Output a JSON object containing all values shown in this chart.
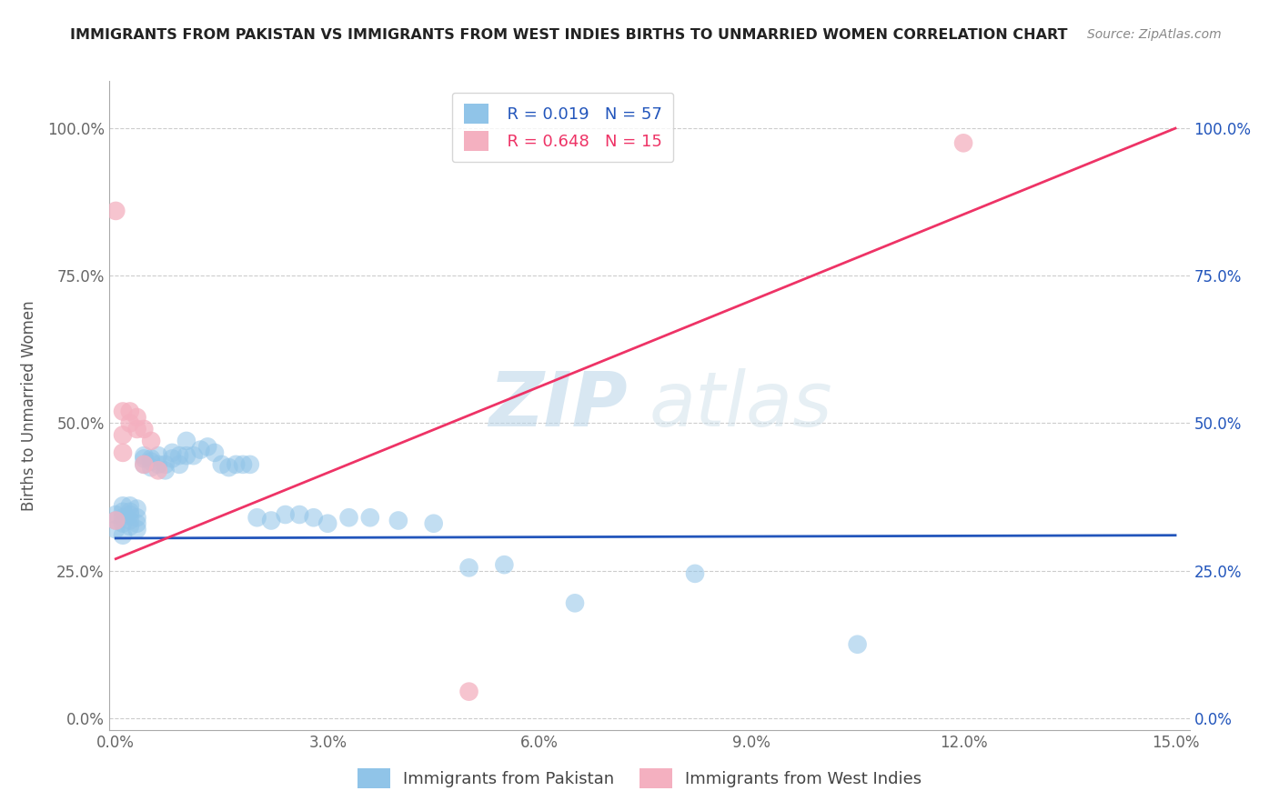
{
  "title": "IMMIGRANTS FROM PAKISTAN VS IMMIGRANTS FROM WEST INDIES BIRTHS TO UNMARRIED WOMEN CORRELATION CHART",
  "source": "Source: ZipAtlas.com",
  "ylabel": "Births to Unmarried Women",
  "watermark_zip": "ZIP",
  "watermark_atlas": "atlas",
  "legend_r1": "R = 0.019",
  "legend_n1": "N = 57",
  "legend_r2": "R = 0.648",
  "legend_n2": "N = 15",
  "xlim": [
    -0.001,
    0.152
  ],
  "ylim": [
    -0.02,
    1.08
  ],
  "xticks": [
    0.0,
    0.03,
    0.06,
    0.09,
    0.12,
    0.15
  ],
  "xticklabels": [
    "0.0%",
    "3.0%",
    "6.0%",
    "9.0%",
    "12.0%",
    "15.0%"
  ],
  "yticks": [
    0.0,
    0.25,
    0.5,
    0.75,
    1.0
  ],
  "yticklabels": [
    "0.0%",
    "25.0%",
    "50.0%",
    "75.0%",
    "100.0%"
  ],
  "grid_color": "#cccccc",
  "blue_color": "#90c4e8",
  "pink_color": "#f4b0c0",
  "line_blue": "#2255bb",
  "line_pink": "#ee3366",
  "pakistan_x": [
    0.0,
    0.0,
    0.0,
    0.001,
    0.001,
    0.001,
    0.001,
    0.001,
    0.002,
    0.002,
    0.002,
    0.002,
    0.002,
    0.003,
    0.003,
    0.003,
    0.003,
    0.004,
    0.004,
    0.004,
    0.005,
    0.005,
    0.005,
    0.006,
    0.006,
    0.007,
    0.007,
    0.008,
    0.008,
    0.009,
    0.009,
    0.01,
    0.01,
    0.011,
    0.012,
    0.013,
    0.014,
    0.015,
    0.016,
    0.017,
    0.018,
    0.019,
    0.02,
    0.022,
    0.024,
    0.026,
    0.028,
    0.03,
    0.033,
    0.036,
    0.04,
    0.045,
    0.05,
    0.055,
    0.065,
    0.082,
    0.105
  ],
  "pakistan_y": [
    0.335,
    0.32,
    0.345,
    0.33,
    0.34,
    0.35,
    0.36,
    0.31,
    0.325,
    0.335,
    0.345,
    0.35,
    0.36,
    0.33,
    0.34,
    0.355,
    0.32,
    0.44,
    0.43,
    0.445,
    0.425,
    0.44,
    0.435,
    0.43,
    0.445,
    0.43,
    0.42,
    0.45,
    0.44,
    0.445,
    0.43,
    0.47,
    0.445,
    0.445,
    0.455,
    0.46,
    0.45,
    0.43,
    0.425,
    0.43,
    0.43,
    0.43,
    0.34,
    0.335,
    0.345,
    0.345,
    0.34,
    0.33,
    0.34,
    0.34,
    0.335,
    0.33,
    0.255,
    0.26,
    0.195,
    0.245,
    0.125
  ],
  "westindies_x": [
    0.0,
    0.0,
    0.001,
    0.001,
    0.001,
    0.002,
    0.002,
    0.003,
    0.003,
    0.004,
    0.004,
    0.005,
    0.006,
    0.05,
    0.12
  ],
  "westindies_y": [
    0.335,
    0.86,
    0.45,
    0.48,
    0.52,
    0.5,
    0.52,
    0.49,
    0.51,
    0.49,
    0.43,
    0.47,
    0.42,
    0.045,
    0.975
  ],
  "line_pk_x0": 0.0,
  "line_pk_x1": 0.15,
  "line_pk_y0": 0.305,
  "line_pk_y1": 0.31,
  "line_wi_x0": 0.0,
  "line_wi_x1": 0.15,
  "line_wi_y0": 0.27,
  "line_wi_y1": 1.0
}
